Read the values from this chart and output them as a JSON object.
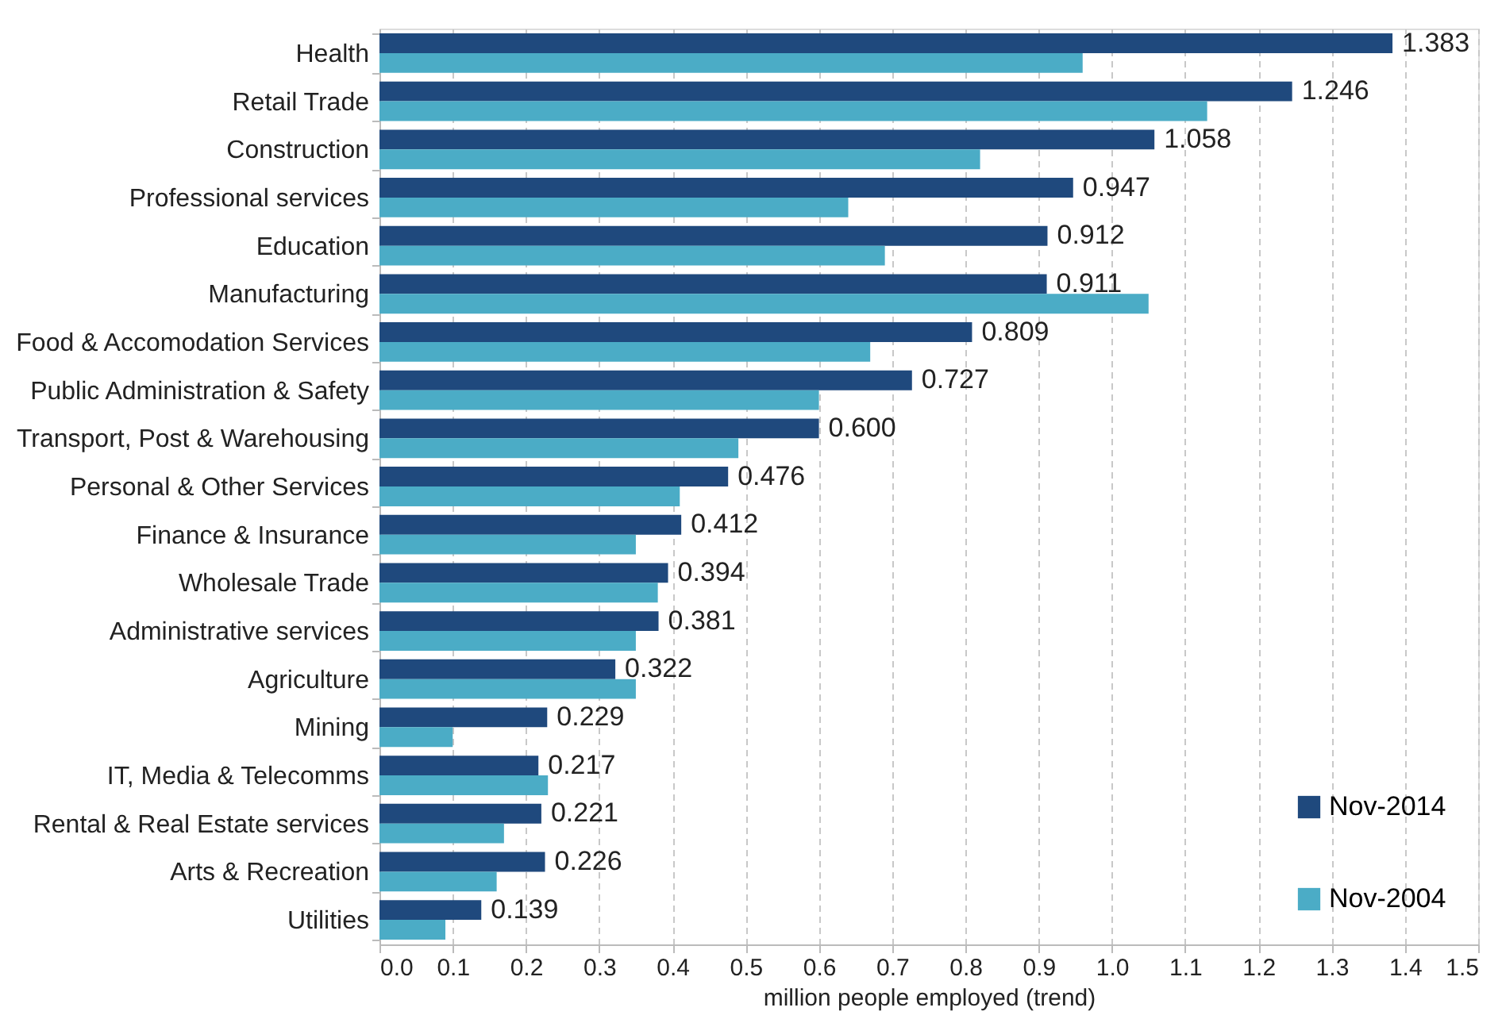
{
  "chart_data": {
    "type": "bar",
    "orientation": "horizontal",
    "xlabel": "million people employed (trend)",
    "categories": [
      "Health",
      "Retail Trade",
      "Construction",
      "Professional services",
      "Education",
      "Manufacturing",
      "Food & Accomodation Services",
      "Public Administration & Safety",
      "Transport, Post & Warehousing",
      "Personal & Other Services",
      "Finance & Insurance",
      "Wholesale Trade",
      "Administrative services",
      "Agriculture",
      "Mining",
      "IT, Media & Telecomms",
      "Rental & Real Estate services",
      "Arts & Recreation",
      "Utilities"
    ],
    "series": [
      {
        "name": "Nov-2014",
        "color": "#1f497d",
        "values": [
          1.383,
          1.246,
          1.058,
          0.947,
          0.912,
          0.911,
          0.809,
          0.727,
          0.6,
          0.476,
          0.412,
          0.394,
          0.381,
          0.322,
          0.229,
          0.217,
          0.221,
          0.226,
          0.139
        ],
        "value_labels": [
          "1.383",
          "1.246",
          "1.058",
          "0.947",
          "0.912",
          "0.911",
          "0.809",
          "0.727",
          "0.600",
          "0.476",
          "0.412",
          "0.394",
          "0.381",
          "0.322",
          "0.229",
          "0.217",
          "0.221",
          "0.226",
          "0.139"
        ]
      },
      {
        "name": "Nov-2004",
        "color": "#4bacc6",
        "values": [
          0.96,
          1.13,
          0.82,
          0.64,
          0.69,
          1.05,
          0.67,
          0.6,
          0.49,
          0.41,
          0.35,
          0.38,
          0.35,
          0.35,
          0.1,
          0.23,
          0.17,
          0.16,
          0.09
        ]
      }
    ],
    "xlim": [
      0,
      1.5
    ],
    "xticks": [
      {
        "value": 0,
        "label": "0.0"
      },
      0.1,
      0.2,
      0.3,
      0.4,
      0.5,
      0.6,
      0.7,
      0.8,
      0.9,
      {
        "value": 1,
        "label": "1.0"
      },
      1.1,
      1.2,
      1.3,
      1.4,
      1.5
    ],
    "grid": "x",
    "legend": "bottom right"
  }
}
